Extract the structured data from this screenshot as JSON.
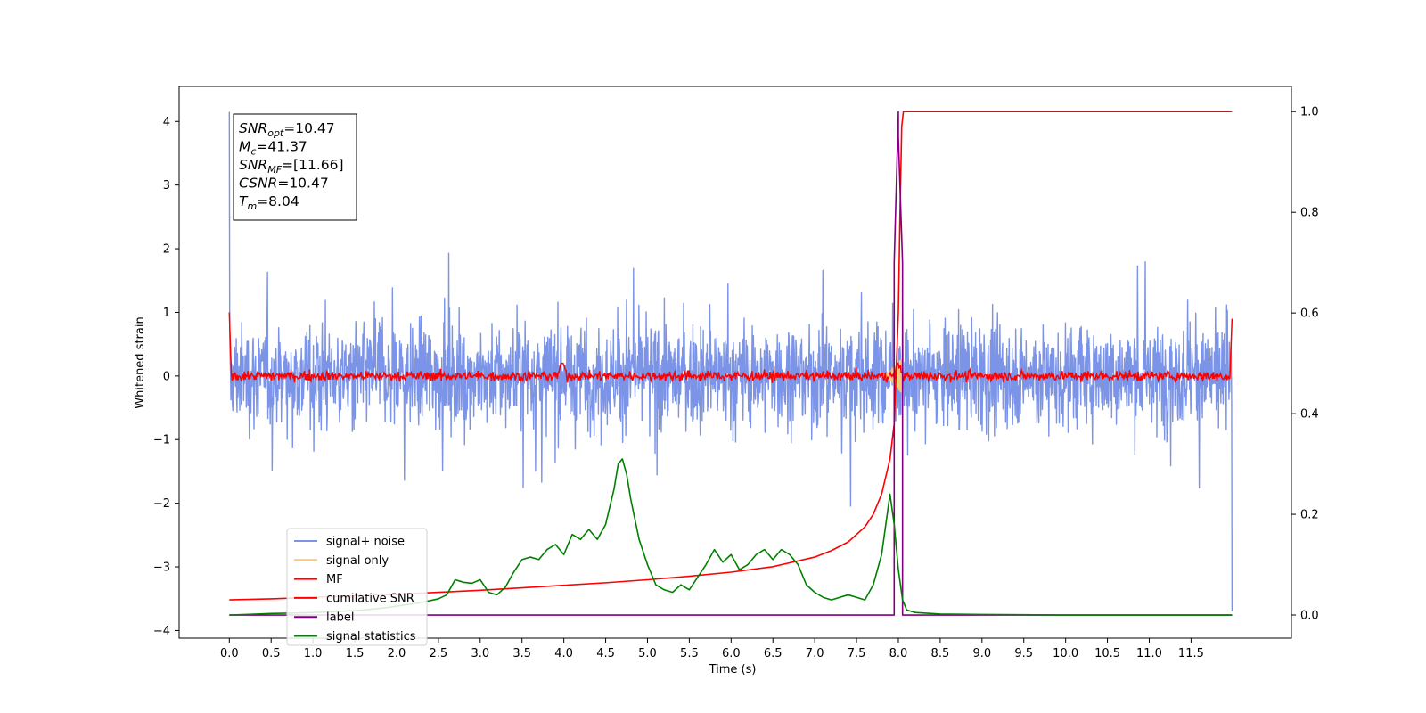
{
  "chart_data": {
    "type": "line",
    "xlabel": "Time (s)",
    "ylabel": "Whitened strain",
    "xlim": [
      -0.6,
      12.7
    ],
    "ylim_left": [
      -4.12,
      4.55
    ],
    "ylim_right": [
      -0.046,
      1.05
    ],
    "x_ticks": [
      "0.0",
      "0.5",
      "1.0",
      "1.5",
      "2.0",
      "2.5",
      "3.0",
      "3.5",
      "4.0",
      "4.5",
      "5.0",
      "5.5",
      "6.0",
      "6.5",
      "7.0",
      "7.5",
      "8.0",
      "8.5",
      "9.0",
      "9.5",
      "10.0",
      "10.5",
      "11.0",
      "11.5"
    ],
    "y_ticks_left": [
      "4",
      "3",
      "2",
      "1",
      "0",
      "−1",
      "−2",
      "−3",
      "−4"
    ],
    "y_ticks_right": [
      "1.0",
      "0.8",
      "0.6",
      "0.4",
      "0.2",
      "0.0"
    ],
    "annotation": [
      {
        "symbol": "SNR",
        "sub": "opt",
        "value": "=10.47"
      },
      {
        "symbol": "M",
        "sub": "c",
        "value": "=41.37"
      },
      {
        "symbol": "SNR",
        "sub": "MF",
        "value": "=[11.66]"
      },
      {
        "symbol": "CSNR",
        "sub": "",
        "value": "=10.47"
      },
      {
        "symbol": "T",
        "sub": "m",
        "value": "=8.04"
      }
    ],
    "series": [
      {
        "name": "signal+ noise",
        "color": "#7b94e8",
        "axis": "left",
        "x_range": [
          0,
          11.99
        ],
        "approx_amplitude": [
          -2.3,
          2.2
        ],
        "values_note": "random noise"
      },
      {
        "name": "signal only",
        "color": "#f5c97a",
        "axis": "left",
        "x_range": [
          7.8,
          8.05
        ],
        "approx_peak": 0.3
      },
      {
        "name": "MF",
        "color": "#ff0000",
        "axis": "left",
        "x_range": [
          0,
          11.99
        ],
        "approx_amplitude": [
          -0.15,
          0.2
        ]
      },
      {
        "name": "cumilative SNR",
        "color": "#ff0000",
        "axis": "right",
        "x": [
          0,
          0.5,
          1,
          1.5,
          2,
          2.5,
          3,
          3.5,
          4,
          4.5,
          5,
          5.5,
          6,
          6.5,
          7,
          7.2,
          7.4,
          7.6,
          7.7,
          7.8,
          7.9,
          7.95,
          8.0,
          8.02,
          8.04,
          8.06,
          8.1,
          9,
          10,
          11,
          11.5,
          11.99
        ],
        "values": [
          0.03,
          0.032,
          0.035,
          0.038,
          0.041,
          0.045,
          0.049,
          0.054,
          0.059,
          0.064,
          0.07,
          0.077,
          0.085,
          0.096,
          0.115,
          0.128,
          0.145,
          0.175,
          0.2,
          0.24,
          0.31,
          0.38,
          0.6,
          0.8,
          0.97,
          1.0,
          1.0,
          1.0,
          1.0,
          1.0,
          1.0,
          1.0
        ]
      },
      {
        "name": "label",
        "color": "#800080",
        "axis": "right",
        "x": [
          0,
          7.95,
          7.95,
          8.0,
          8.0,
          8.05,
          8.05,
          11.99
        ],
        "values": [
          0,
          0,
          0.7,
          1.0,
          0.95,
          0.7,
          0,
          0
        ]
      },
      {
        "name": "signal statistics",
        "color": "#008000",
        "axis": "right",
        "x": [
          0,
          0.2,
          0.5,
          0.8,
          1.0,
          1.3,
          1.6,
          1.9,
          2.1,
          2.3,
          2.5,
          2.6,
          2.7,
          2.8,
          2.9,
          3.0,
          3.1,
          3.2,
          3.3,
          3.4,
          3.5,
          3.6,
          3.7,
          3.8,
          3.9,
          4.0,
          4.1,
          4.2,
          4.3,
          4.4,
          4.5,
          4.6,
          4.65,
          4.7,
          4.75,
          4.8,
          4.9,
          5.0,
          5.1,
          5.2,
          5.3,
          5.4,
          5.5,
          5.6,
          5.7,
          5.8,
          5.9,
          6.0,
          6.1,
          6.2,
          6.3,
          6.4,
          6.5,
          6.6,
          6.7,
          6.8,
          6.9,
          7.0,
          7.1,
          7.2,
          7.3,
          7.4,
          7.5,
          7.6,
          7.7,
          7.8,
          7.9,
          7.95,
          8.0,
          8.05,
          8.1,
          8.2,
          8.5,
          9.0,
          10.0,
          11.0,
          11.99
        ],
        "values": [
          0,
          0.001,
          0.003,
          0.004,
          0.005,
          0.007,
          0.01,
          0.015,
          0.02,
          0.025,
          0.032,
          0.04,
          0.07,
          0.065,
          0.063,
          0.07,
          0.045,
          0.04,
          0.055,
          0.085,
          0.11,
          0.115,
          0.11,
          0.13,
          0.14,
          0.12,
          0.16,
          0.15,
          0.17,
          0.15,
          0.18,
          0.25,
          0.3,
          0.31,
          0.28,
          0.23,
          0.15,
          0.1,
          0.06,
          0.05,
          0.045,
          0.06,
          0.05,
          0.075,
          0.1,
          0.13,
          0.105,
          0.12,
          0.09,
          0.1,
          0.12,
          0.13,
          0.11,
          0.13,
          0.12,
          0.1,
          0.06,
          0.045,
          0.035,
          0.03,
          0.035,
          0.04,
          0.035,
          0.03,
          0.06,
          0.12,
          0.24,
          0.18,
          0.09,
          0.03,
          0.01,
          0.005,
          0.002,
          0.001,
          0.0,
          0.0,
          0.0
        ]
      }
    ],
    "legend_position": "lower-left"
  }
}
